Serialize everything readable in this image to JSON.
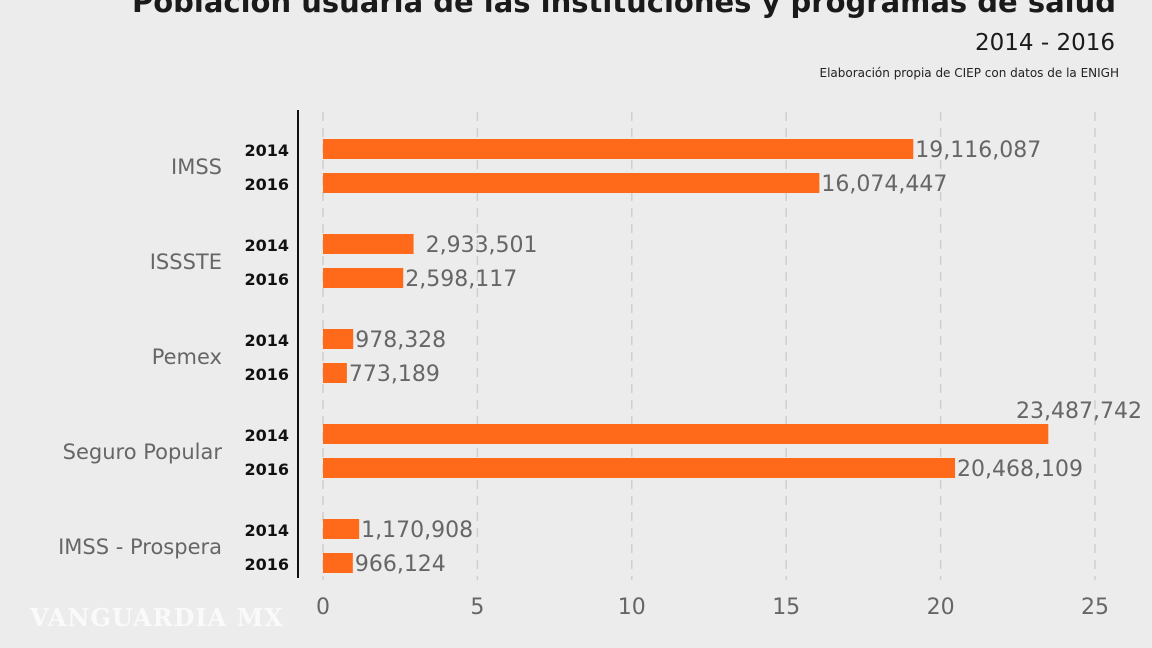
{
  "chart_data": {
    "type": "bar",
    "orientation": "horizontal",
    "title": "Población usuaria de las instituciones y programas de salud",
    "subtitle": "2014 - 2016",
    "source": "Elaboración propia de CIEP con datos de la ENIGH",
    "categories": [
      "IMSS",
      "ISSSTE",
      "Pemex",
      "Seguro Popular",
      "IMSS - Prospera"
    ],
    "years": [
      "2014",
      "2016"
    ],
    "values": [
      [
        19116087,
        16074447
      ],
      [
        2933501,
        2598117
      ],
      [
        978328,
        773189
      ],
      [
        23487742,
        20468109
      ],
      [
        1170908,
        966124
      ]
    ],
    "data_labels": [
      [
        "19,116,087",
        "16,074,447"
      ],
      [
        "2,933,501",
        "2,598,117"
      ],
      [
        "978,328",
        "773,189"
      ],
      [
        "23,487,742",
        "20,468,109"
      ],
      [
        "1,170,908",
        "966,124"
      ]
    ],
    "xlim": [
      0,
      25
    ],
    "x_unit_divisor": 1000000,
    "xticks": [
      "0",
      "5",
      "10",
      "15",
      "20",
      "25"
    ],
    "grid": "vertical dashed",
    "bar_color": "#ff6a1a"
  },
  "watermark": "VANGUARDIA MX"
}
